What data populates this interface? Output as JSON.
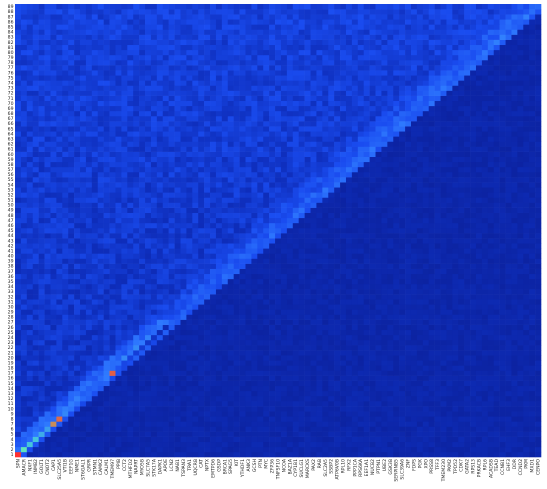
{
  "chart_data": {
    "type": "heatmap",
    "title": "",
    "xlabel": "",
    "ylabel": "",
    "y_ticks": [
      "1",
      "2",
      "3",
      "4",
      "5",
      "6",
      "7",
      "8",
      "9",
      "10",
      "11",
      "12",
      "13",
      "14",
      "15",
      "16",
      "17",
      "18",
      "19",
      "20",
      "21",
      "22",
      "23",
      "24",
      "25",
      "26",
      "27",
      "28",
      "29",
      "30",
      "31",
      "32",
      "33",
      "34",
      "35",
      "36",
      "37",
      "38",
      "39",
      "40",
      "41",
      "42",
      "43",
      "44",
      "45",
      "46",
      "47",
      "48",
      "49",
      "50",
      "51",
      "52",
      "53",
      "54",
      "55",
      "56",
      "57",
      "58",
      "59",
      "60",
      "61",
      "62",
      "63",
      "64",
      "65",
      "66",
      "67",
      "68",
      "69",
      "70",
      "71",
      "72",
      "73",
      "74",
      "75",
      "76",
      "77",
      "78",
      "79",
      "80",
      "81",
      "82",
      "83",
      "84",
      "85",
      "86",
      "87",
      "88",
      "89"
    ],
    "x_ticks": [
      "SPN",
      "AMACR",
      "NXF1",
      "INMB2",
      "GOLT1",
      "CNOT2",
      "CAP1",
      "SLC25A5",
      "VTI1B",
      "EEF1G",
      "NME1",
      "ST6GAL1",
      "GRPR",
      "STMN1",
      "CAMK2",
      "CALM1",
      "TMEM97",
      "PPIB",
      "CCT2",
      "MTHFD2",
      "NAPRT",
      "MYO5B",
      "SLC7A5",
      "STK17A",
      "DAPK1",
      "APOE",
      "LCN2",
      "NAB1",
      "TSPAN3",
      "TRA1",
      "UQCRB",
      "CAT",
      "NPTX",
      "EMTPD6",
      "GSDP",
      "BRCA1",
      "SPAG5",
      "KIT",
      "YTHDF1",
      "ANK3",
      "GCSH",
      "PTN",
      "MYC",
      "ZFP36",
      "TNFSF10",
      "NCOA",
      "BAZ1A",
      "CYP1B1",
      "SUCLG1",
      "MARCKS",
      "PAX2",
      "RAB",
      "SLC2A5",
      "SSBP2",
      "ATP6V0B",
      "RPL10",
      "RFX2",
      "PPP1CA",
      "RPS6KA",
      "EEF1A1",
      "NUCB2",
      "PTPN1",
      "UBE2",
      "GSK3B",
      "SERPINB5",
      "SLC39A6",
      "ZNF",
      "FDPS",
      "PGK",
      "XPO",
      "PRSS8",
      "TFF3",
      "TMEM230",
      "PKM2",
      "TPD52",
      "CDK7",
      "GATA2",
      "RPS13",
      "PRKACB",
      "RPL6",
      "ACADSB",
      "TEAD",
      "CCNB1",
      "EHF3",
      "DDR",
      "CCND2",
      "PKM",
      "MXD1",
      "CENPO"
    ],
    "n_rows": 89,
    "n_cols": 89,
    "colorscale": [
      "#0a1a8c",
      "#0e2dba",
      "#1a4cf0",
      "#2f7bff",
      "#4fe0d0",
      "#8af08a",
      "#ff3030"
    ],
    "value_range": [
      0,
      1
    ],
    "diagonal_values": {
      "1": 1.0,
      "2": 0.72,
      "3": 0.62,
      "4": 0.62,
      "5": 0.58,
      "6": 0.56,
      "7": 0.92,
      "8": 0.95,
      "9": 0.52,
      "10": 0.48,
      "11": 0.45,
      "12": 0.44,
      "13": 0.42,
      "14": 0.42,
      "15": 0.4,
      "16": 0.5,
      "17": 0.96,
      "18": 0.36,
      "19": 0.3,
      "20": 0.28,
      "21": 0.26,
      "22": 0.24,
      "23": 0.22,
      "24": 0.2,
      "25": 0.16,
      "26": 0.15
    }
  }
}
